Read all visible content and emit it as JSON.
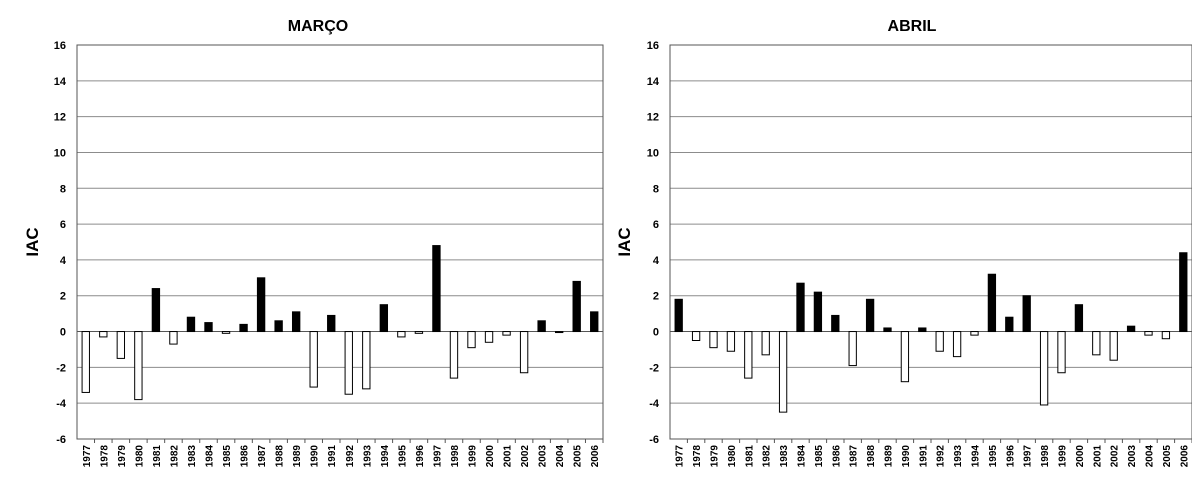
{
  "chart_data": [
    {
      "type": "bar",
      "title": "MARÇO",
      "xlabel": "",
      "ylabel": "IAC",
      "ylim": [
        -6,
        16
      ],
      "yticks": [
        16,
        14,
        12,
        10,
        8,
        6,
        4,
        2,
        0,
        -2,
        -4,
        -6
      ],
      "grid": true,
      "positive_color": "#000000",
      "negative_color": "#ffffff",
      "categories": [
        "1977",
        "1978",
        "1979",
        "1980",
        "1981",
        "1982",
        "1983",
        "1984",
        "1985",
        "1986",
        "1987",
        "1988",
        "1989",
        "1990",
        "1991",
        "1992",
        "1993",
        "1994",
        "1995",
        "1996",
        "1997",
        "1998",
        "1999",
        "2000",
        "2001",
        "2002",
        "2003",
        "2004",
        "2005",
        "2006"
      ],
      "values": [
        -3.4,
        -0.3,
        -1.5,
        -3.8,
        2.4,
        -0.7,
        0.8,
        0.5,
        -0.1,
        0.4,
        3.0,
        0.6,
        1.1,
        -3.1,
        0.9,
        -3.5,
        -3.2,
        1.5,
        -0.3,
        -0.1,
        4.8,
        -2.6,
        -0.9,
        -0.6,
        -0.2,
        -2.3,
        0.6,
        -0.05,
        2.8,
        1.1
      ]
    },
    {
      "type": "bar",
      "title": "ABRIL",
      "xlabel": "",
      "ylabel": "IAC",
      "ylim": [
        -6,
        16
      ],
      "yticks": [
        16,
        14,
        12,
        10,
        8,
        6,
        4,
        2,
        0,
        -2,
        -4,
        -6
      ],
      "grid": true,
      "positive_color": "#000000",
      "negative_color": "#ffffff",
      "categories": [
        "1977",
        "1978",
        "1979",
        "1980",
        "1981",
        "1982",
        "1983",
        "1984",
        "1985",
        "1986",
        "1987",
        "1988",
        "1989",
        "1990",
        "1991",
        "1992",
        "1993",
        "1994",
        "1995",
        "1996",
        "1997",
        "1998",
        "1999",
        "2000",
        "2001",
        "2002",
        "2003",
        "2004",
        "2005",
        "2006"
      ],
      "values": [
        1.8,
        -0.5,
        -0.9,
        -1.1,
        -2.6,
        -1.3,
        -4.5,
        2.7,
        2.2,
        0.9,
        -1.9,
        1.8,
        0.2,
        -2.8,
        0.2,
        -1.1,
        -1.4,
        -0.2,
        3.2,
        0.8,
        2.0,
        -4.1,
        -2.3,
        1.5,
        -1.3,
        -1.6,
        0.3,
        -0.2,
        -0.4,
        4.4
      ]
    }
  ]
}
